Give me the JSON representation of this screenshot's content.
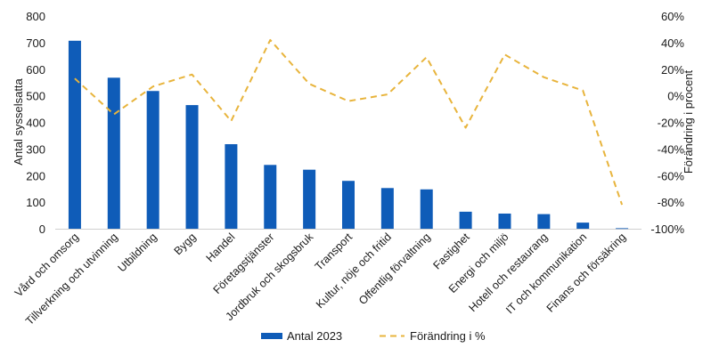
{
  "chart_data": {
    "type": "bar",
    "categories": [
      "Vård och omsorg",
      "Tillverkning och utvinning",
      "Utbildning",
      "Bygg",
      "Handel",
      "Företagstjänster",
      "Jordbruk och skogsbruk",
      "Transport",
      "Kultur, nöje och fritid",
      "Offentlig förvaltning",
      "Fastighet",
      "Energi och miljö",
      "Hotell och restaurang",
      "IT och kommunikation",
      "Finans och försäkring"
    ],
    "series": [
      {
        "name": "Antal 2023",
        "type": "bar",
        "axis": "left",
        "color": "#0f5cb8",
        "values": [
          707,
          568,
          518,
          465,
          318,
          240,
          222,
          180,
          153,
          148,
          64,
          57,
          55,
          23,
          2
        ]
      },
      {
        "name": "Förändring i %",
        "type": "line",
        "style": "dashed",
        "axis": "right",
        "color": "#e8b43c",
        "values": [
          13,
          -14,
          7,
          16,
          -19,
          42,
          9,
          -4,
          1,
          29,
          -24,
          31,
          14,
          4,
          -82
        ]
      }
    ],
    "ylabel": "Antal sysselsatta",
    "y2label": "Förändring i procent",
    "ylim": [
      0,
      800
    ],
    "y2lim": [
      -100,
      60
    ],
    "yticks": [
      "0",
      "100",
      "200",
      "300",
      "400",
      "500",
      "600",
      "700",
      "800"
    ],
    "y2ticks": [
      "-100%",
      "-80%",
      "-60%",
      "-40%",
      "-20%",
      "0%",
      "20%",
      "40%",
      "60%"
    ],
    "grid": false,
    "legend": "bottom"
  }
}
